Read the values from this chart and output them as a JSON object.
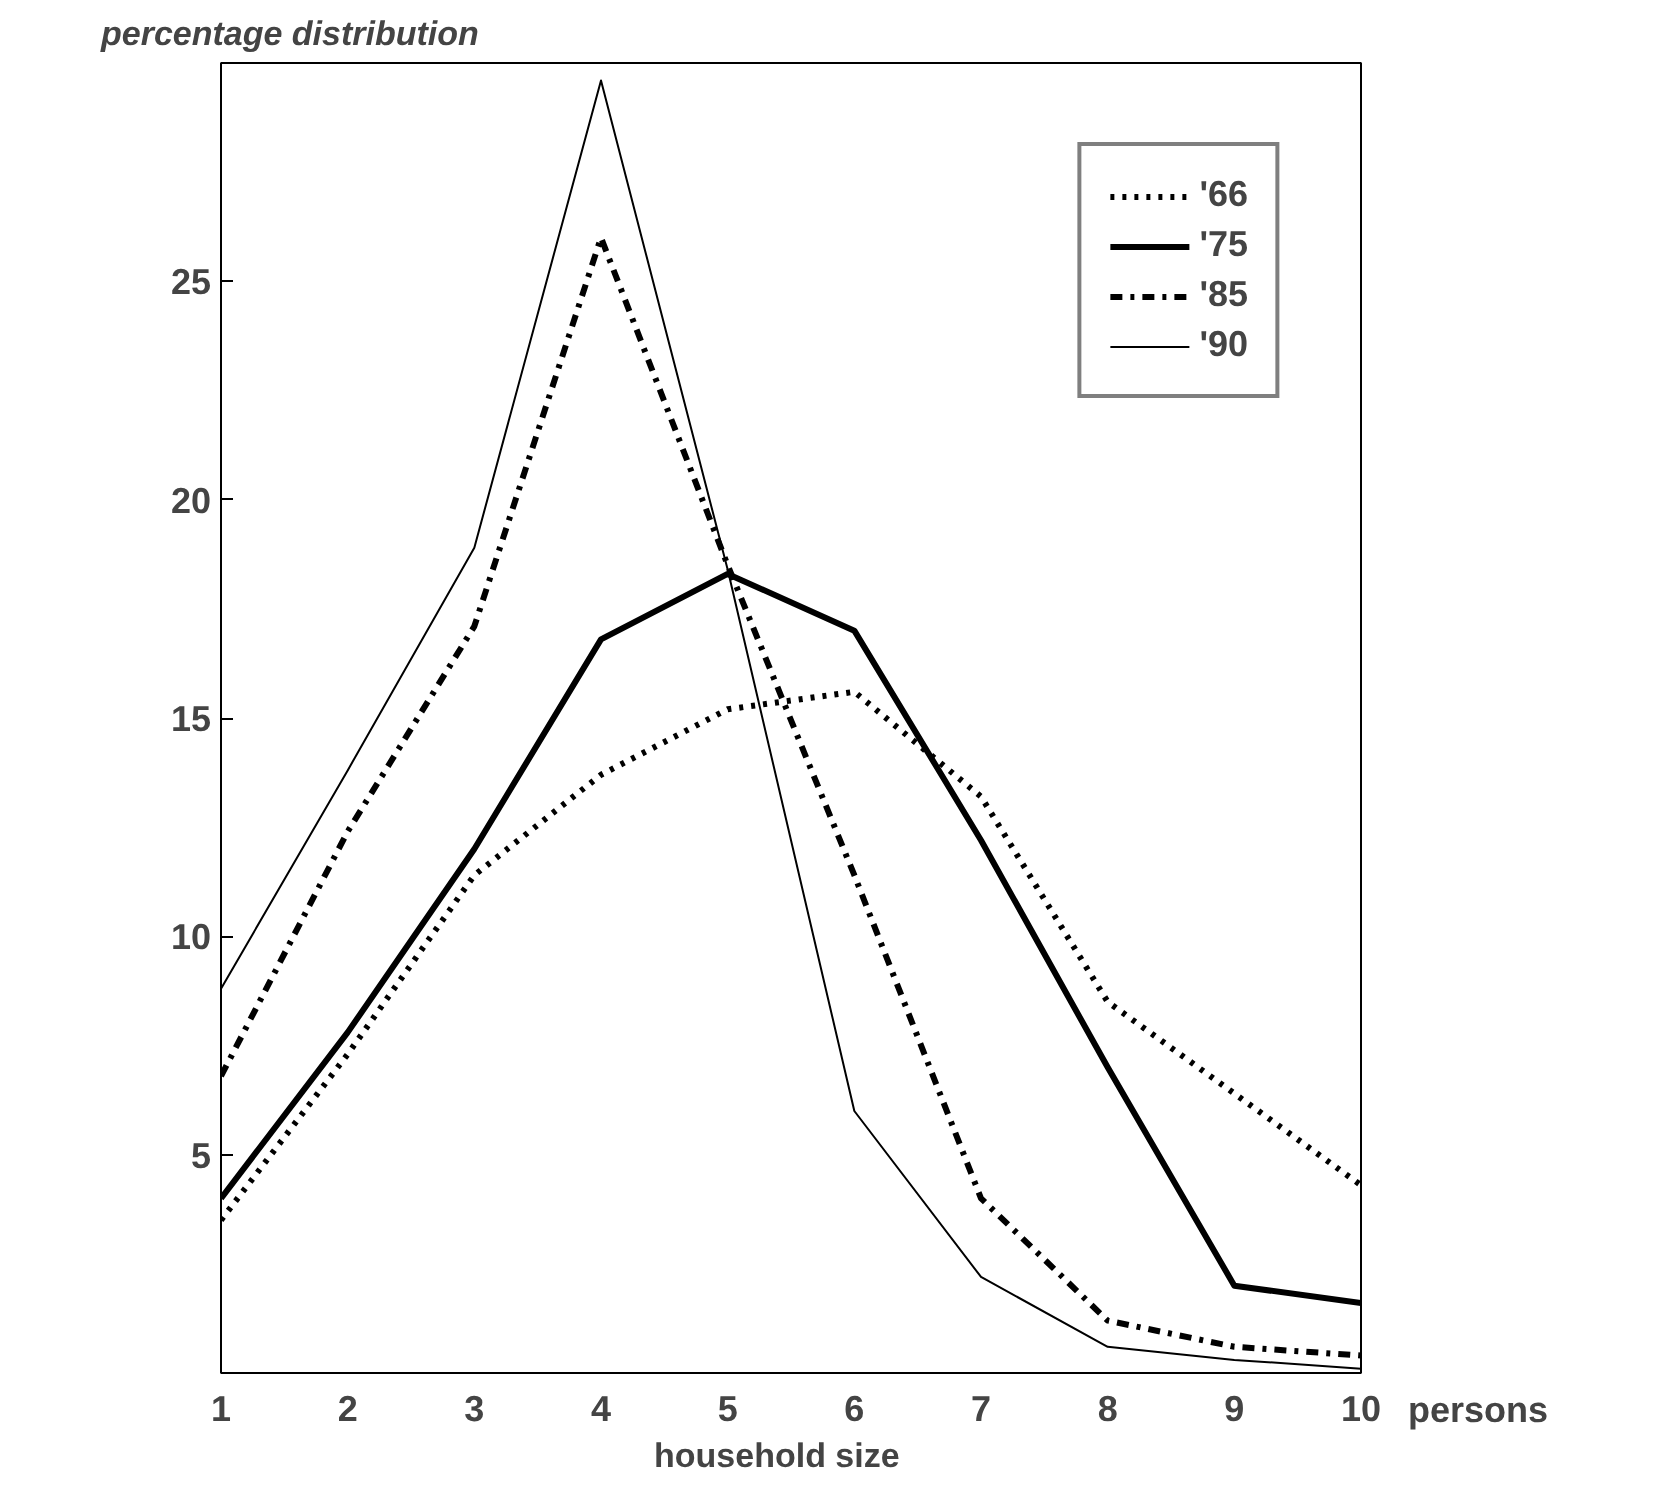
{
  "chart_data": {
    "type": "line",
    "title": "percentage distribution",
    "xlabel": "household    size",
    "x": [
      1,
      2,
      3,
      4,
      5,
      6,
      7,
      8,
      9,
      10
    ],
    "series": [
      {
        "name": "'66",
        "color": "#000000",
        "line_style": "dotted",
        "values": [
          3.5,
          7.3,
          11.4,
          13.7,
          15.2,
          15.6,
          13.2,
          8.5,
          6.4,
          4.3
        ]
      },
      {
        "name": "'75",
        "color": "#000000",
        "line_style": "solid",
        "values": [
          4.0,
          7.8,
          12.0,
          16.8,
          18.3,
          17.0,
          12.2,
          7.0,
          2.0,
          1.6
        ]
      },
      {
        "name": "'85",
        "color": "#000000",
        "line_style": "dashdot",
        "values": [
          6.8,
          12.4,
          17.1,
          26.0,
          18.5,
          11.4,
          4.0,
          1.2,
          0.6,
          0.4
        ]
      },
      {
        "name": "'90",
        "color": "#000000",
        "line_style": "solid",
        "values": [
          8.8,
          13.8,
          18.9,
          29.6,
          18.4,
          6.0,
          2.2,
          0.6,
          0.3,
          0.1
        ]
      }
    ],
    "xlim": [
      1,
      10
    ],
    "ylim": [
      0,
      30
    ],
    "xticks": [
      1,
      2,
      3,
      4,
      5,
      6,
      7,
      8,
      9,
      10
    ],
    "yticks": [
      5,
      10,
      15,
      20,
      25
    ],
    "annotations": [
      "persons"
    ],
    "grid": false,
    "legend": "top right",
    "marker": "none"
  }
}
